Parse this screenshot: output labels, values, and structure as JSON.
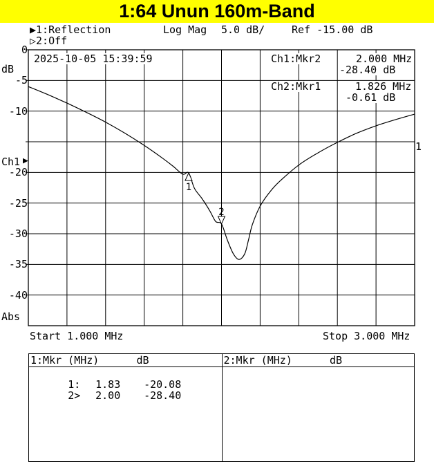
{
  "title": "1:64 Unun 160m-Band",
  "channels": {
    "ch1": "▶1:Reflection",
    "ch2": "▷2:Off",
    "format": "Log Mag",
    "scale": "5.0 dB/",
    "ref": "Ref -15.00 dB"
  },
  "timestamp": "2025-10-05 15:39:59",
  "markers_readout": {
    "ch1_label": "Ch1:Mkr2",
    "ch1_freq": "2.000 MHz",
    "ch1_val": "-28.40 dB",
    "ch2_label": "Ch2:Mkr1",
    "ch2_freq": "1.826 MHz",
    "ch2_val": "-0.61 dB"
  },
  "axis": {
    "unit": "dB",
    "ch1_label": "Ch1",
    "abs": "Abs",
    "start": "Start 1.000 MHz",
    "stop": "Stop 3.000 MHz",
    "trace_label": "1"
  },
  "chart_data": {
    "type": "line",
    "xlabel": "",
    "ylabel": "dB",
    "xlim": [
      1.0,
      3.0
    ],
    "ylim": [
      -45,
      0
    ],
    "yticks": [
      {
        "v": 0,
        "label": "0"
      },
      {
        "v": -5,
        "label": "-5"
      },
      {
        "v": -10,
        "label": "-10"
      },
      {
        "v": -20,
        "label": "-20"
      },
      {
        "v": -25,
        "label": "-25"
      },
      {
        "v": -30,
        "label": "-30"
      },
      {
        "v": -35,
        "label": "-35"
      },
      {
        "v": -40,
        "label": "-40"
      }
    ],
    "grid": true,
    "series": [
      {
        "x": [
          1.0,
          1.1,
          1.2,
          1.3,
          1.4,
          1.5,
          1.6,
          1.7,
          1.75,
          1.8,
          1.83,
          1.86,
          1.9,
          1.94,
          1.97,
          2.0,
          2.03,
          2.06,
          2.09,
          2.12,
          2.14,
          2.16,
          2.2,
          2.25,
          2.3,
          2.4,
          2.5,
          2.6,
          2.7,
          2.8,
          2.9,
          3.0
        ],
        "y": [
          -6.0,
          -7.3,
          -8.7,
          -10.2,
          -11.8,
          -13.6,
          -15.6,
          -17.8,
          -19.0,
          -20.3,
          -20.08,
          -22.6,
          -24.3,
          -26.3,
          -28.0,
          -28.4,
          -31.0,
          -33.2,
          -34.2,
          -33.3,
          -31.0,
          -28.5,
          -25.5,
          -23.2,
          -21.5,
          -18.8,
          -16.8,
          -15.1,
          -13.6,
          -12.4,
          -11.4,
          -10.5
        ],
        "color": "#000000"
      }
    ],
    "markers": [
      {
        "id": "1",
        "x": 1.83,
        "y": -20.08,
        "shape": "up"
      },
      {
        "id": "2",
        "x": 2.0,
        "y": -28.4,
        "shape": "down"
      }
    ]
  },
  "marker_table": {
    "left_header": "1:Mkr (MHz)      dB",
    "right_header": "2:Mkr (MHz)      dB",
    "rows": [
      {
        "id": "1:",
        "freq": "1.83",
        "db": "-20.08"
      },
      {
        "id": "2>",
        "freq": "2.00",
        "db": "-28.40"
      }
    ]
  }
}
